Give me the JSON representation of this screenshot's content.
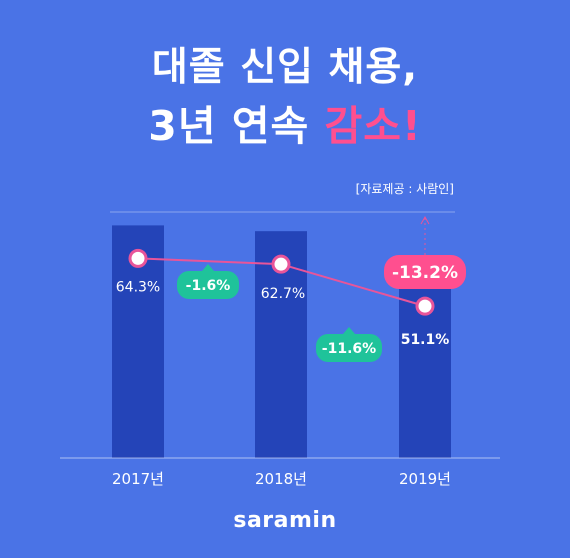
{
  "header": {
    "title_line1": "대졸 신입 채용,",
    "title_line2_prefix": "3년 연속 ",
    "title_line2_highlight": "감소!"
  },
  "source": "[자료제공 : 사람인]",
  "brand": "saramin",
  "colors": {
    "background": "#4a73e6",
    "bar": "#2444b8",
    "line": "#e8559a",
    "change_badge": "#1fc39a",
    "total_badge": "#ff4f8f"
  },
  "chart_data": {
    "type": "bar",
    "categories": [
      "2017년",
      "2018년",
      "2019년"
    ],
    "values": [
      64.3,
      62.7,
      51.1
    ],
    "data_labels": [
      "64.3%",
      "62.7%",
      "51.1%"
    ],
    "overlay": {
      "type": "line",
      "values": [
        64.3,
        62.7,
        51.1
      ]
    },
    "annotations": {
      "changes": [
        "-1.6%",
        "-11.6%"
      ],
      "total_change": "-13.2%"
    },
    "ylim": [
      0,
      68
    ],
    "grid": false
  }
}
